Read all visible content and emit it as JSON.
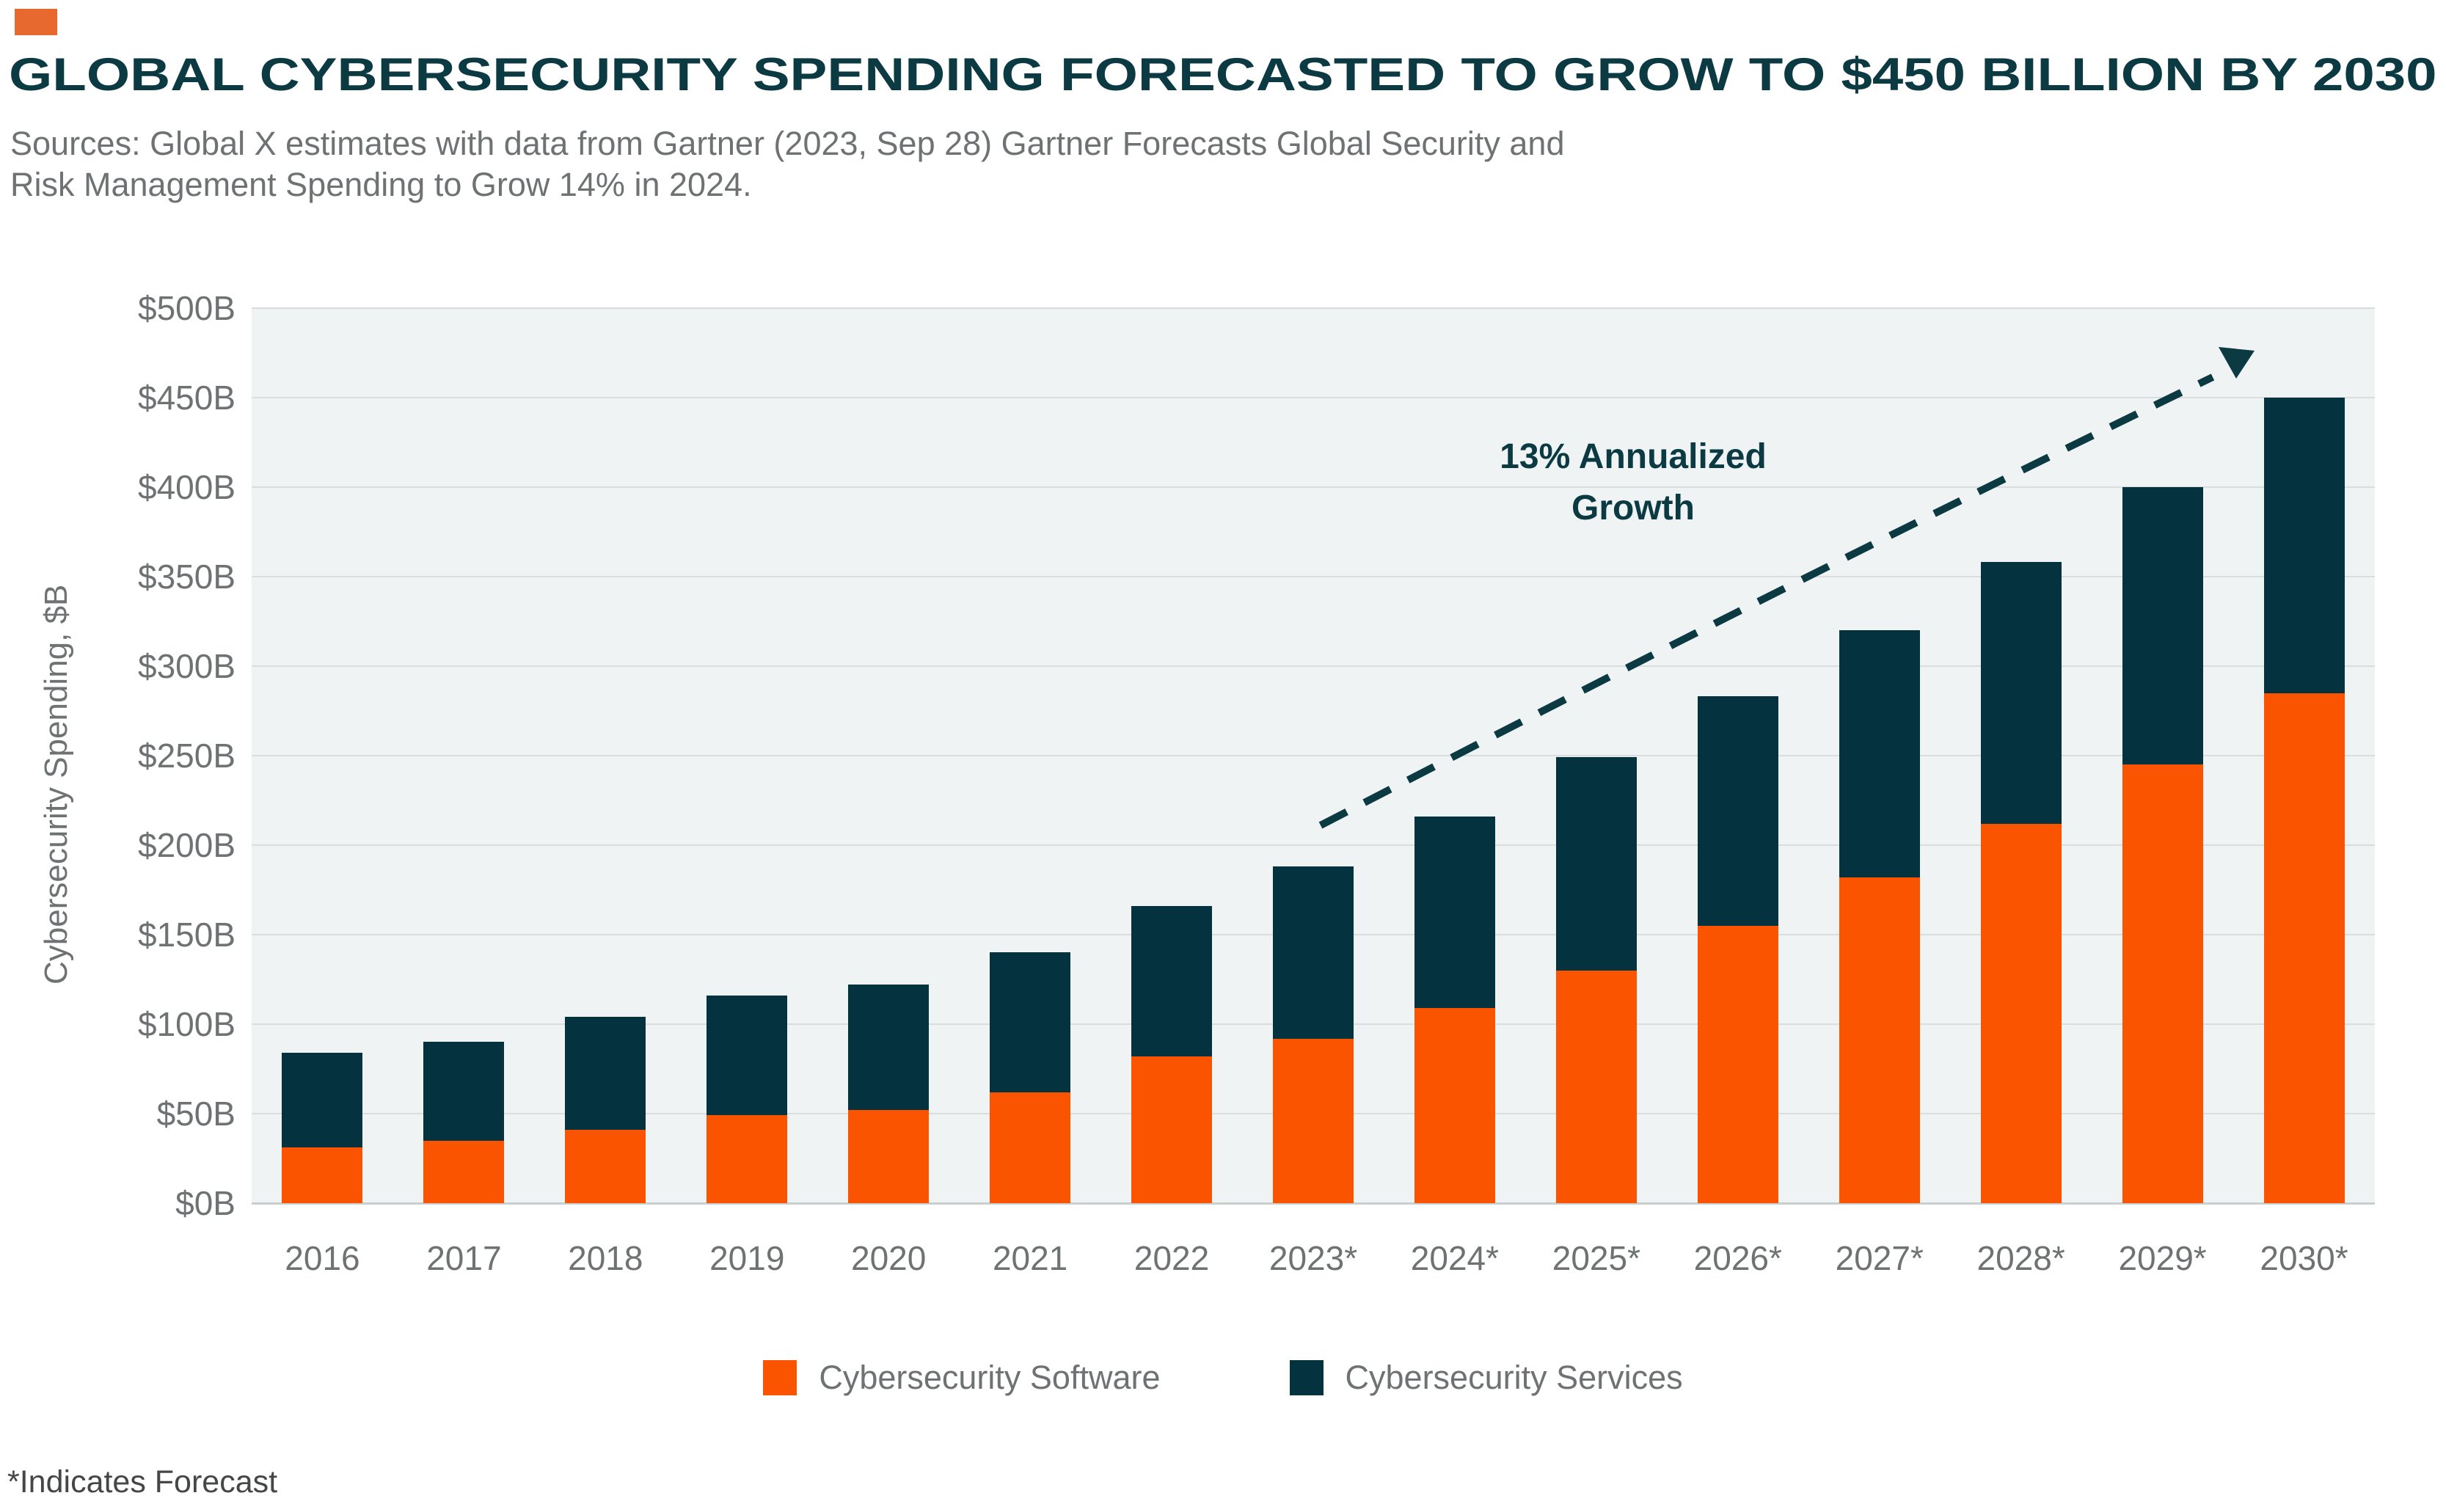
{
  "header": {
    "accent_color": "#E8692F",
    "title": "GLOBAL CYBERSECURITY SPENDING FORECASTED TO GROW TO $450 BILLION BY 2030",
    "source_line1": "Sources: Global X estimates with data from Gartner (2023, Sep 28) Gartner Forecasts Global Security and",
    "source_line2": "Risk Management Spending to Grow 14% in 2024."
  },
  "chart_data": {
    "type": "bar",
    "stacked": true,
    "categories": [
      "2016",
      "2017",
      "2018",
      "2019",
      "2020",
      "2021",
      "2022",
      "2023*",
      "2024*",
      "2025*",
      "2026*",
      "2027*",
      "2028*",
      "2029*",
      "2030*"
    ],
    "series": [
      {
        "name": "Cybersecurity Software",
        "color": "#FB5400",
        "values": [
          31,
          35,
          41,
          49,
          52,
          62,
          82,
          92,
          109,
          130,
          155,
          182,
          212,
          245,
          285
        ]
      },
      {
        "name": "Cybersecurity Services",
        "color": "#04333F",
        "values": [
          53,
          55,
          63,
          67,
          70,
          78,
          84,
          96,
          107,
          119,
          128,
          138,
          146,
          155,
          165
        ]
      }
    ],
    "totals": [
      84,
      90,
      104,
      116,
      122,
      140,
      166,
      188,
      216,
      249,
      283,
      320,
      358,
      400,
      450
    ],
    "xlabel": "",
    "ylabel": "Cybersecurity Spending, $B",
    "ylim": [
      0,
      500
    ],
    "ytick_step": 50,
    "ytick_labels": [
      "$0B",
      "$50B",
      "$100B",
      "$150B",
      "$200B",
      "$250B",
      "$300B",
      "$350B",
      "$400B",
      "$450B",
      "$500B"
    ],
    "grid": true,
    "plot_background": "#EFF3F4",
    "gridline_color": "#DADDDE",
    "legend_position": "bottom",
    "annotation": {
      "line1": "13% Annualized",
      "line2": "Growth",
      "color": "#0B3A43"
    },
    "arrow_color": "#0B3A43"
  },
  "footnote": "*Indicates Forecast"
}
